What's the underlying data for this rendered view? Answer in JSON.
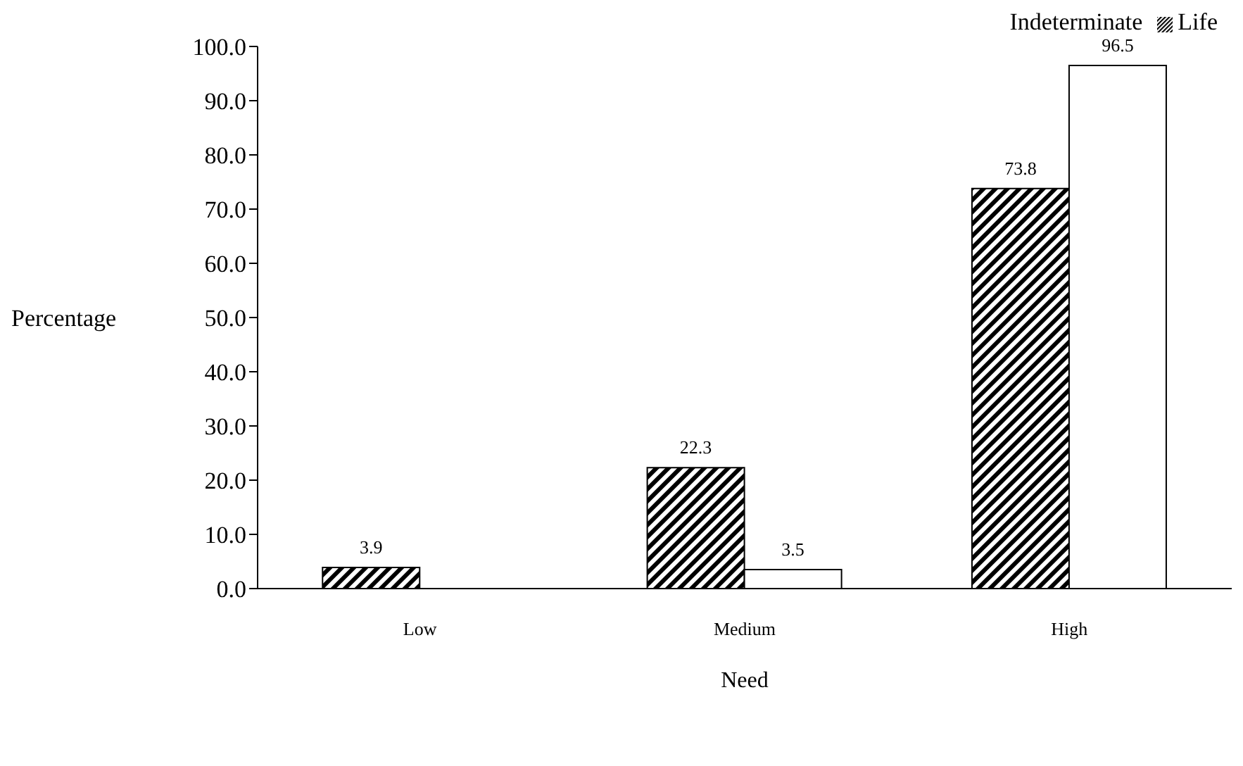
{
  "chart_data": {
    "type": "bar",
    "xlabel": "Need",
    "ylabel": "Percentage",
    "categories": [
      "Low",
      "Medium",
      "High"
    ],
    "series": [
      {
        "name": "Life",
        "color": "#000000",
        "values": [
          3.9,
          22.3,
          73.8
        ]
      },
      {
        "name": "Indeterminate",
        "color": "#ffffff",
        "values": [
          null,
          3.5,
          96.5
        ]
      }
    ],
    "ylim": [
      0,
      100
    ],
    "yticks": [
      {
        "value": 0,
        "label": "0.0"
      },
      {
        "value": 10,
        "label": "10.0"
      },
      {
        "value": 20,
        "label": "20.0"
      },
      {
        "value": 30,
        "label": "30.0"
      },
      {
        "value": 40,
        "label": "40.0"
      },
      {
        "value": 50,
        "label": "50.0"
      },
      {
        "value": 60,
        "label": "60.0"
      },
      {
        "value": 70,
        "label": "70.0"
      },
      {
        "value": 80,
        "label": "80.0"
      },
      {
        "value": 90,
        "label": "90.0"
      },
      {
        "value": 100,
        "label": "100.0"
      }
    ],
    "data_labels": true,
    "legend": "top right",
    "grid": false
  }
}
